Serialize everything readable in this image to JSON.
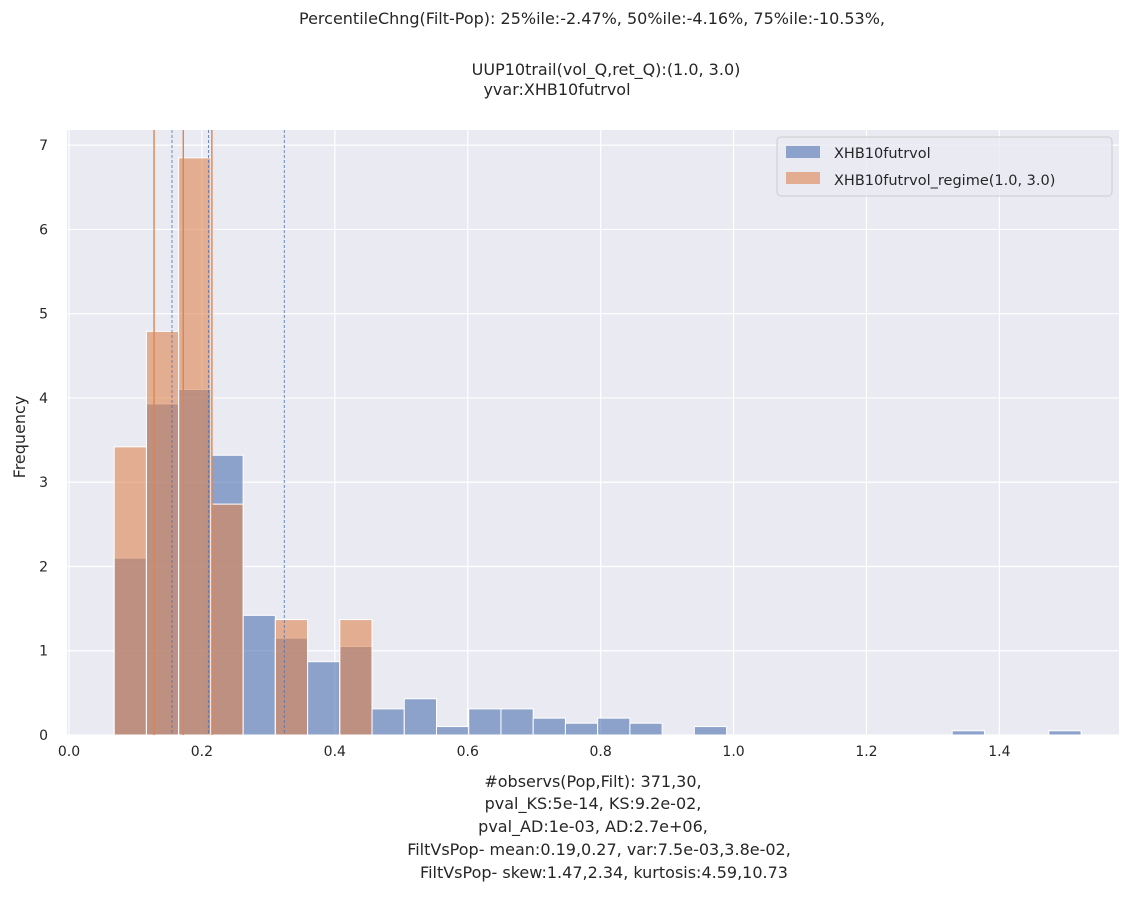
{
  "chart_data": {
    "type": "histogram",
    "title_lines": [
      "PercentileChng(Filt-Pop):  25%ile:-2.47%, 50%ile:-4.16%, 75%ile:-10.53%,",
      "",
      "UUP10trail(vol_Q,ret_Q):(1.0, 3.0)",
      "yvar:XHB10futrvol"
    ],
    "ylabel": "Frequency",
    "xlabel_lines": [
      "#observs(Pop,Filt): 371,30,",
      "pval_KS:5e-14, KS:9.2e-02,",
      "pval_AD:1e-03, AD:2.7e+06,",
      "FiltVsPop- mean:0.19,0.27, var:7.5e-03,3.8e-02,",
      "FiltVsPop- skew:1.47,2.34, kurtosis:4.59,10.73"
    ],
    "xlim": [
      -0.003,
      1.58
    ],
    "ylim": [
      0,
      7.18
    ],
    "x_ticks": [
      0.0,
      0.2,
      0.4,
      0.6,
      0.8,
      1.0,
      1.2,
      1.4
    ],
    "x_tick_labels": [
      "0.0",
      "0.2",
      "0.4",
      "0.6",
      "0.8",
      "1.0",
      "1.2",
      "1.4"
    ],
    "y_ticks": [
      0,
      1,
      2,
      3,
      4,
      5,
      6,
      7
    ],
    "y_tick_labels": [
      "0",
      "1",
      "2",
      "3",
      "4",
      "5",
      "6",
      "7"
    ],
    "grid": true,
    "legend_position": "top-right",
    "series": [
      {
        "name": "XHB10futrvol",
        "color": "#4c72b0",
        "bin_edges": [
          0.068,
          0.1165,
          0.165,
          0.2135,
          0.262,
          0.3105,
          0.359,
          0.4075,
          0.456,
          0.5045,
          0.553,
          0.6015,
          0.65,
          0.6985,
          0.747,
          0.7955,
          0.844,
          0.8925,
          0.941,
          0.9895,
          1.038,
          1.0865,
          1.135,
          1.1835,
          1.232,
          1.2805,
          1.329,
          1.3775,
          1.426,
          1.4745,
          1.523
        ],
        "values": [
          2.1,
          3.93,
          4.1,
          3.32,
          1.42,
          1.15,
          0.87,
          1.05,
          0.31,
          0.43,
          0.1,
          0.31,
          0.31,
          0.2,
          0.14,
          0.2,
          0.14,
          0,
          0.1,
          0,
          0,
          0,
          0,
          0,
          0,
          0,
          0.05,
          0,
          0,
          0.05
        ]
      },
      {
        "name": "XHB10futrvol_regime(1.0, 3.0)",
        "color": "#dd8452",
        "bin_edges": [
          0.068,
          0.1165,
          0.165,
          0.2135,
          0.262,
          0.3105,
          0.359,
          0.4075,
          0.456
        ],
        "values": [
          3.42,
          4.79,
          6.85,
          2.74,
          0,
          1.37,
          0,
          1.37
        ]
      }
    ],
    "vlines": [
      {
        "x": 0.128,
        "color": "#dd8452",
        "style": "solid"
      },
      {
        "x": 0.172,
        "color": "#dd8452",
        "style": "solid"
      },
      {
        "x": 0.215,
        "color": "#dd8452",
        "style": "solid"
      },
      {
        "x": 0.155,
        "color": "#4c72b0",
        "style": "dashed"
      },
      {
        "x": 0.21,
        "color": "#4c72b0",
        "style": "dashed"
      },
      {
        "x": 0.324,
        "color": "#4c72b0",
        "style": "dashed"
      }
    ]
  }
}
